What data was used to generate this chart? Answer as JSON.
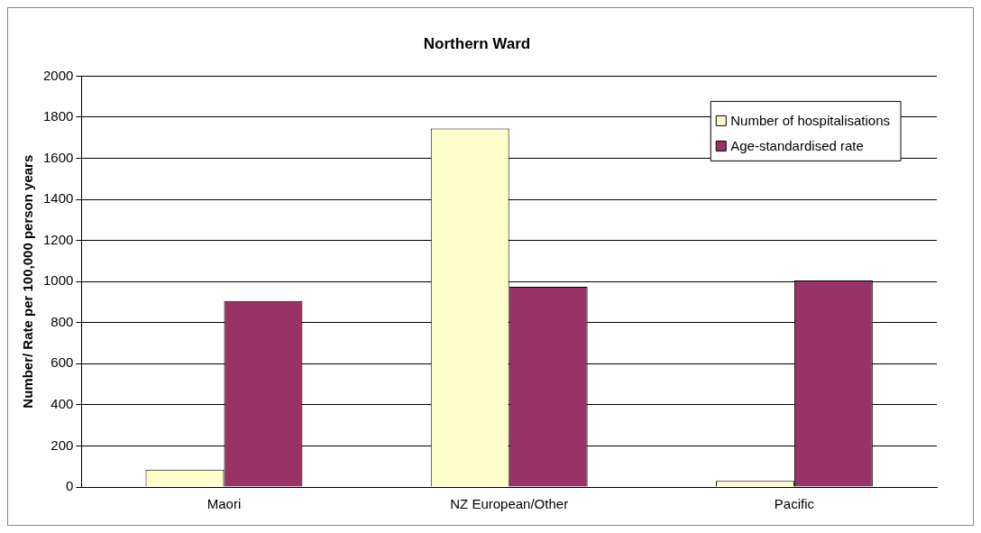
{
  "chart_data": {
    "type": "bar",
    "title": "Northern Ward",
    "ylabel": "Number/ Rate per 100,000 person years",
    "categories": [
      "Maori",
      "NZ European/Other",
      "Pacific"
    ],
    "series": [
      {
        "name": "Number of hospitalisations",
        "color": "#ffffcc",
        "values": [
          85,
          1745,
          30
        ]
      },
      {
        "name": "Age-standardised rate",
        "color": "#993366",
        "values": [
          905,
          975,
          1005
        ]
      }
    ],
    "ylim": [
      0,
      2000
    ],
    "yticks": [
      0,
      200,
      400,
      600,
      800,
      1000,
      1200,
      1400,
      1600,
      1800,
      2000
    ],
    "grid": "y",
    "legend": "top right"
  }
}
